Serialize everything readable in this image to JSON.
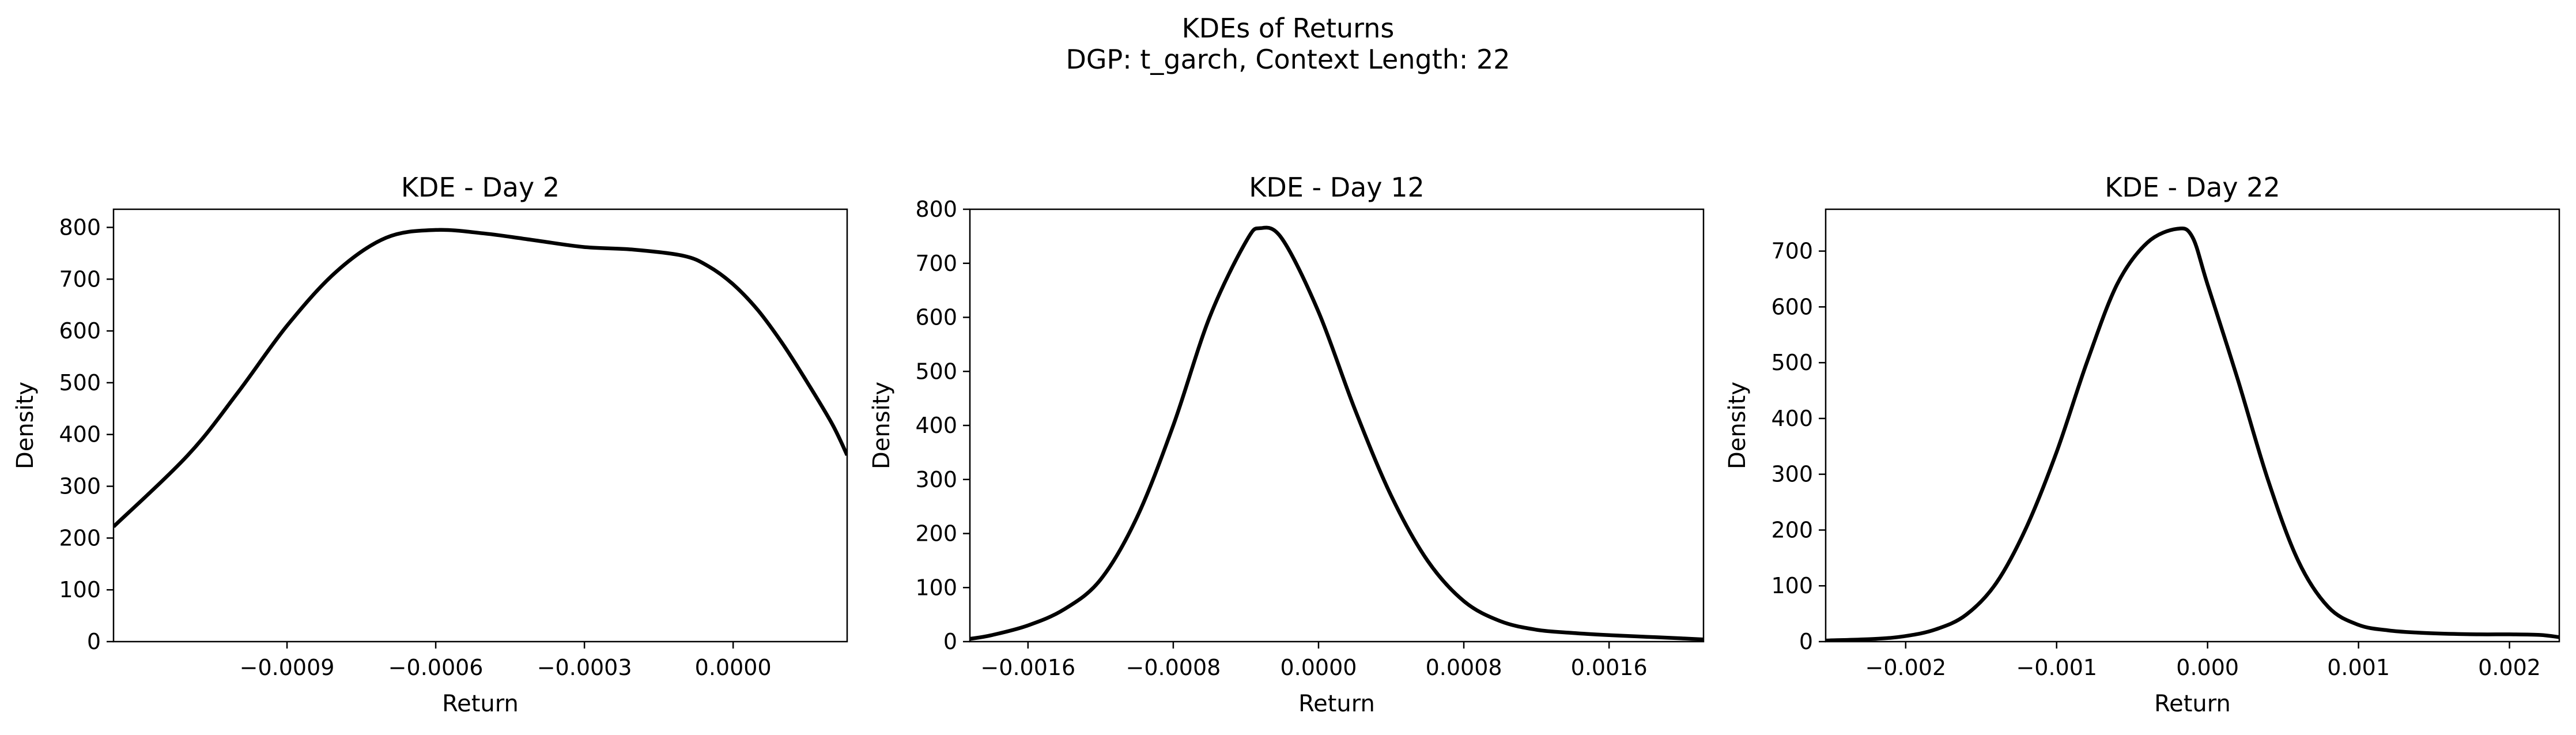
{
  "figure": {
    "title_line1": "KDEs of Returns",
    "title_line2": "DGP: t_garch, Context Length: 22",
    "line_color": "#000000",
    "background": "#ffffff"
  },
  "chart_data": [
    {
      "type": "line",
      "title": "KDE - Day 2",
      "xlabel": "Return",
      "ylabel": "Density",
      "xlim": [
        -0.00125,
        0.00023
      ],
      "ylim": [
        0,
        835
      ],
      "xticks": [
        -0.0009,
        -0.0006,
        -0.0003,
        0.0
      ],
      "xtick_labels": [
        "−0.0009",
        "−0.0006",
        "−0.0003",
        "0.0000"
      ],
      "yticks": [
        0,
        100,
        200,
        300,
        400,
        500,
        600,
        700,
        800
      ],
      "ytick_labels": [
        "0",
        "100",
        "200",
        "300",
        "400",
        "500",
        "600",
        "700",
        "800"
      ],
      "grid": false,
      "series": [
        {
          "x": [
            -0.00125,
            -0.0011,
            -0.001,
            -0.0009,
            -0.0008,
            -0.0007,
            -0.0006,
            -0.0005,
            -0.0004,
            -0.0003,
            -0.0002,
            -0.0001,
            -5e-05,
            0.0,
            5e-05,
            0.0001,
            0.00015,
            0.0002,
            0.00023
          ],
          "y": [
            222,
            360,
            480,
            610,
            715,
            780,
            795,
            788,
            775,
            762,
            757,
            745,
            725,
            690,
            640,
            575,
            500,
            420,
            360
          ]
        }
      ]
    },
    {
      "type": "line",
      "title": "KDE - Day 12",
      "xlabel": "Return",
      "ylabel": "Density",
      "xlim": [
        -0.00192,
        0.00212
      ],
      "ylim": [
        0,
        800
      ],
      "xticks": [
        -0.0016,
        -0.0008,
        0.0,
        0.0008,
        0.0016
      ],
      "xtick_labels": [
        "−0.0016",
        "−0.0008",
        "0.0000",
        "0.0008",
        "0.0016"
      ],
      "yticks": [
        0,
        100,
        200,
        300,
        400,
        500,
        600,
        700,
        800
      ],
      "ytick_labels": [
        "0",
        "100",
        "200",
        "300",
        "400",
        "500",
        "600",
        "700",
        "800"
      ],
      "grid": false,
      "series": [
        {
          "x": [
            -0.00192,
            -0.0018,
            -0.0016,
            -0.0014,
            -0.0012,
            -0.001,
            -0.0008,
            -0.0006,
            -0.0004,
            -0.00032,
            -0.0002,
            0.0,
            0.0002,
            0.0004,
            0.0006,
            0.0008,
            0.001,
            0.0012,
            0.0014,
            0.0016,
            0.0018,
            0.002,
            0.00212
          ],
          "y": [
            5,
            12,
            30,
            60,
            115,
            230,
            400,
            600,
            740,
            765,
            745,
            610,
            430,
            270,
            150,
            75,
            38,
            22,
            16,
            12,
            9,
            6,
            4
          ]
        }
      ]
    },
    {
      "type": "line",
      "title": "KDE - Day 22",
      "xlabel": "Return",
      "ylabel": "Density",
      "xlim": [
        -0.00253,
        0.00233
      ],
      "ylim": [
        0,
        775
      ],
      "xticks": [
        -0.002,
        -0.001,
        0.0,
        0.001,
        0.002
      ],
      "xtick_labels": [
        "−0.002",
        "−0.001",
        "0.000",
        "0.001",
        "0.002"
      ],
      "yticks": [
        0,
        100,
        200,
        300,
        400,
        500,
        600,
        700
      ],
      "ytick_labels": [
        "0",
        "100",
        "200",
        "300",
        "400",
        "500",
        "600",
        "700"
      ],
      "grid": false,
      "series": [
        {
          "x": [
            -0.00253,
            -0.0022,
            -0.002,
            -0.0018,
            -0.0016,
            -0.0014,
            -0.0012,
            -0.001,
            -0.0008,
            -0.0006,
            -0.0004,
            -0.0002,
            -0.0001,
            0.0,
            0.0002,
            0.0004,
            0.0006,
            0.0008,
            0.001,
            0.0012,
            0.0014,
            0.0016,
            0.0018,
            0.002,
            0.0022,
            0.00233
          ],
          "y": [
            2,
            5,
            10,
            22,
            48,
            105,
            205,
            340,
            500,
            640,
            715,
            740,
            725,
            640,
            470,
            290,
            145,
            62,
            30,
            20,
            16,
            14,
            13,
            13,
            12,
            8
          ]
        }
      ]
    }
  ]
}
